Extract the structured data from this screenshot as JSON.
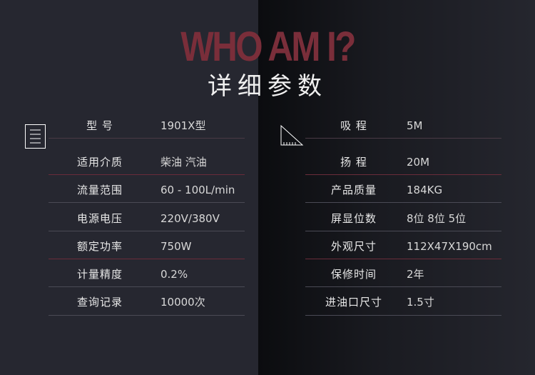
{
  "header": {
    "title_en": "WHO AM I?",
    "title_cn": "详细参数"
  },
  "colors": {
    "accent": "#7a2e3a",
    "line_red": "#5e2a36",
    "line_gray": "#4a4a55"
  },
  "left": [
    {
      "label": "型 号",
      "value": "1901X型"
    },
    {
      "label": "适用介质",
      "value": "柴油  汽油"
    },
    {
      "label": "流量范围",
      "value": "60 - 100L/min"
    },
    {
      "label": "电源电压",
      "value": "220V/380V"
    },
    {
      "label": "额定功率",
      "value": "750W"
    },
    {
      "label": "计量精度",
      "value": "0.2%"
    },
    {
      "label": "查询记录",
      "value": "10000次"
    }
  ],
  "right": [
    {
      "label": "吸 程",
      "value": "5M"
    },
    {
      "label": "扬 程",
      "value": "20M"
    },
    {
      "label": "产品质量",
      "value": "184KG"
    },
    {
      "label": "屏显位数",
      "value": "8位 8位 5位"
    },
    {
      "label": "外观尺寸",
      "value": "112X47X190cm"
    },
    {
      "label": "保修时间",
      "value": "2年"
    },
    {
      "label": "进油口尺寸",
      "value": "1.5寸"
    }
  ]
}
